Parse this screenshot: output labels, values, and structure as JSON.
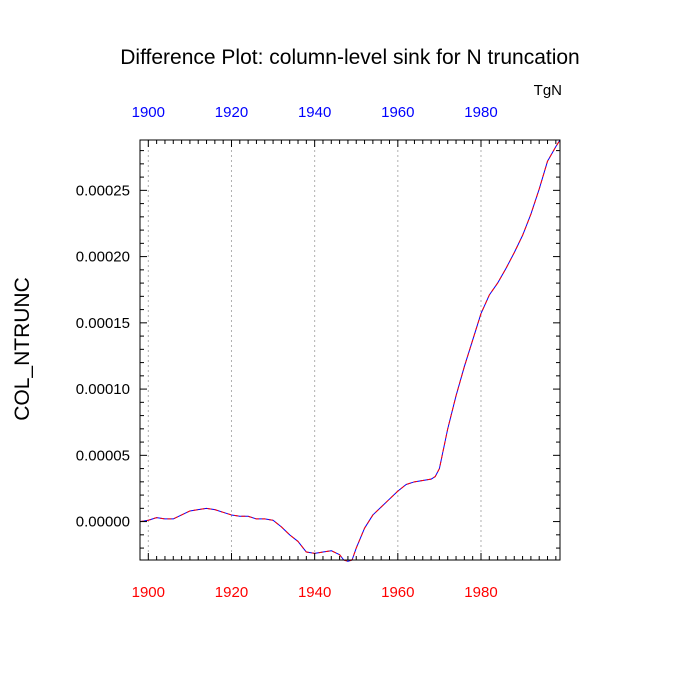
{
  "chart_data": {
    "type": "line",
    "title": "Difference Plot: column-level sink for N truncation",
    "units_label": "TgN",
    "ylabel": "COL_NTRUNC",
    "xlabel": "",
    "xlim": [
      1898,
      1999
    ],
    "ylim": [
      -2.9e-05,
      0.000288
    ],
    "x_ticks": [
      1900,
      1920,
      1940,
      1960,
      1980
    ],
    "x_tick_labels": [
      "1900",
      "1920",
      "1940",
      "1960",
      "1980"
    ],
    "y_ticks": [
      0,
      5e-05,
      0.0001,
      0.00015,
      0.0002,
      0.00025
    ],
    "y_tick_labels": [
      "0.00000",
      "0.00005",
      "0.00010",
      "0.00015",
      "0.00020",
      "0.00025"
    ],
    "grid": "vertical dotted at x ticks",
    "colors": {
      "top_axis_labels": "#0000ff",
      "bottom_axis_labels": "#ff0000",
      "series_1": "#0000ff",
      "series_2": "#ff0000"
    },
    "series": [
      {
        "line_style": "solid",
        "color": "#0000ff",
        "x": [
          1898,
          1900,
          1902,
          1904,
          1906,
          1908,
          1910,
          1912,
          1914,
          1916,
          1918,
          1920,
          1922,
          1924,
          1926,
          1928,
          1930,
          1932,
          1934,
          1936,
          1938,
          1940,
          1942,
          1944,
          1946,
          1947,
          1948,
          1949,
          1950,
          1952,
          1954,
          1956,
          1958,
          1960,
          1962,
          1964,
          1966,
          1968,
          1969,
          1970,
          1972,
          1974,
          1976,
          1978,
          1980,
          1982,
          1984,
          1986,
          1988,
          1990,
          1992,
          1994,
          1996,
          1998,
          1999
        ],
        "y": [
          0.0,
          1e-06,
          3e-06,
          2e-06,
          2e-06,
          5e-06,
          8e-06,
          9e-06,
          1e-05,
          9e-06,
          7e-06,
          5e-06,
          4e-06,
          4e-06,
          2e-06,
          2e-06,
          1e-06,
          -4e-06,
          -1e-05,
          -1.5e-05,
          -2.3e-05,
          -2.4e-05,
          -2.3e-05,
          -2.2e-05,
          -2.5e-05,
          -2.9e-05,
          -3e-05,
          -2.9e-05,
          -2e-05,
          -5e-06,
          5e-06,
          1.1e-05,
          1.7e-05,
          2.3e-05,
          2.8e-05,
          3e-05,
          3.1e-05,
          3.2e-05,
          3.4e-05,
          4e-05,
          7e-05,
          9.5e-05,
          0.000117,
          0.000137,
          0.000157,
          0.000171,
          0.00018,
          0.000191,
          0.000203,
          0.000216,
          0.000232,
          0.000251,
          0.000272,
          0.000283,
          0.000288
        ]
      },
      {
        "line_style": "dashed",
        "color": "#ff0000",
        "x": [
          1898,
          1900,
          1902,
          1904,
          1906,
          1908,
          1910,
          1912,
          1914,
          1916,
          1918,
          1920,
          1922,
          1924,
          1926,
          1928,
          1930,
          1932,
          1934,
          1936,
          1938,
          1940,
          1942,
          1944,
          1946,
          1947,
          1948,
          1949,
          1950,
          1952,
          1954,
          1956,
          1958,
          1960,
          1962,
          1964,
          1966,
          1968,
          1969,
          1970,
          1972,
          1974,
          1976,
          1978,
          1980,
          1982,
          1984,
          1986,
          1988,
          1990,
          1992,
          1994,
          1996,
          1998,
          1999
        ],
        "y": [
          0.0,
          1e-06,
          3e-06,
          2e-06,
          2e-06,
          5e-06,
          8e-06,
          9e-06,
          1e-05,
          9e-06,
          7e-06,
          5e-06,
          4e-06,
          4e-06,
          2e-06,
          2e-06,
          1e-06,
          -4e-06,
          -1e-05,
          -1.5e-05,
          -2.3e-05,
          -2.4e-05,
          -2.3e-05,
          -2.2e-05,
          -2.5e-05,
          -2.9e-05,
          -3e-05,
          -2.9e-05,
          -2e-05,
          -5e-06,
          5e-06,
          1.1e-05,
          1.7e-05,
          2.3e-05,
          2.8e-05,
          3e-05,
          3.1e-05,
          3.2e-05,
          3.4e-05,
          4e-05,
          7e-05,
          9.5e-05,
          0.000117,
          0.000137,
          0.000157,
          0.000171,
          0.00018,
          0.000191,
          0.000203,
          0.000216,
          0.000232,
          0.000251,
          0.000272,
          0.000283,
          0.000288
        ]
      }
    ]
  }
}
